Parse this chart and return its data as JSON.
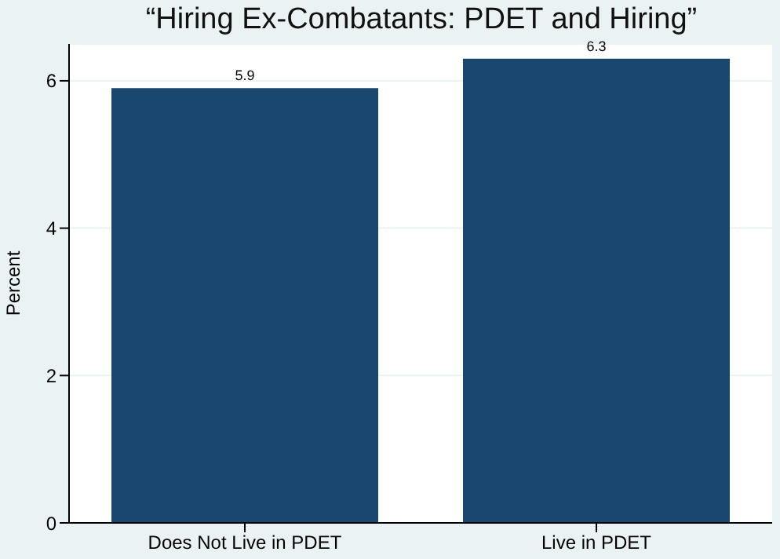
{
  "chart_data": {
    "type": "bar",
    "title": "“Hiring Ex-Combatants: PDET and Hiring”",
    "ylabel": "Percent",
    "categories": [
      "Does Not Live in PDET",
      "Live in PDET"
    ],
    "values": [
      5.9,
      6.3
    ],
    "color": "#1a476f",
    "ylim": [
      0,
      6.5
    ],
    "yticks": [
      0,
      2,
      4,
      6
    ],
    "grid": "y",
    "data_labels": true
  }
}
